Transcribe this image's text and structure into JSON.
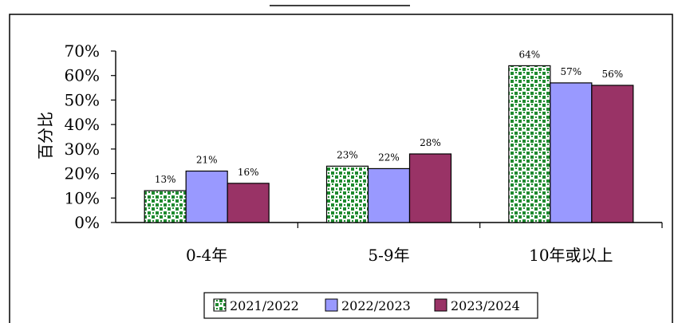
{
  "chart_data": {
    "type": "bar",
    "ylabel": "百分比",
    "xlabel": "",
    "ylim": [
      0,
      70
    ],
    "yticks": [
      "0%",
      "10%",
      "20%",
      "30%",
      "40%",
      "50%",
      "60%",
      "70%"
    ],
    "categories": [
      "0-4年",
      "5-9年",
      "10年或以上"
    ],
    "series": [
      {
        "name": "2021/2022",
        "values": [
          13,
          23,
          64
        ],
        "labels": [
          "13%",
          "23%",
          "64%"
        ],
        "color": "#1e8a2e",
        "pattern": "dots"
      },
      {
        "name": "2022/2023",
        "values": [
          21,
          22,
          57
        ],
        "labels": [
          "21%",
          "22%",
          "57%"
        ],
        "color": "#9999ff"
      },
      {
        "name": "2023/2024",
        "values": [
          16,
          28,
          56
        ],
        "labels": [
          "16%",
          "28%",
          "56%"
        ],
        "color": "#993366"
      }
    ],
    "legend_position": "bottom",
    "grid": false
  }
}
